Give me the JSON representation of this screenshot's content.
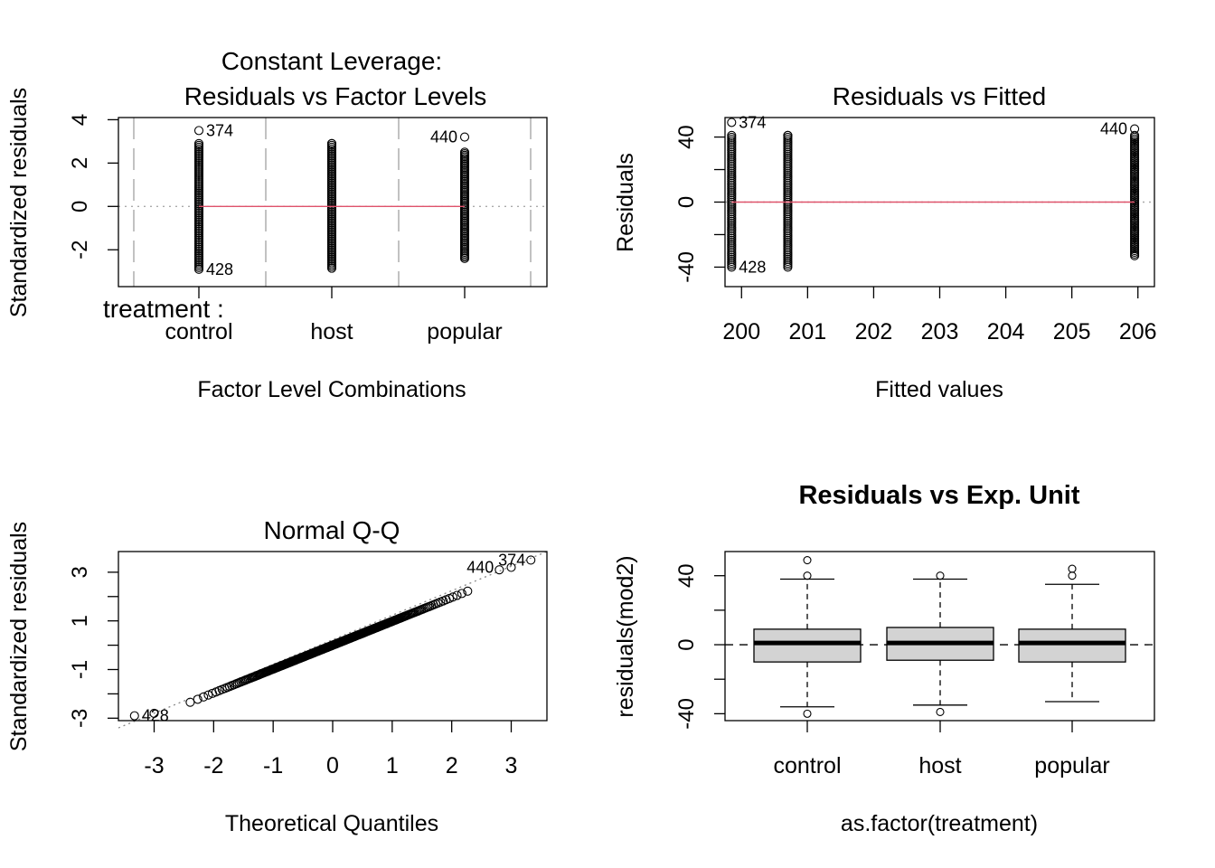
{
  "chart_data": [
    {
      "type": "scatter",
      "title": "Constant Leverage:\nResiduals vs Factor Levels",
      "xlabel": "Factor Level Combinations",
      "ylabel": "Standardized residuals",
      "factor_label": "treatment :",
      "categories": [
        "control",
        "host",
        "popular"
      ],
      "ylim": [
        -3.7,
        4.1
      ],
      "yticks": [
        -2,
        0,
        2,
        4
      ],
      "ytick_labels": [
        "-2",
        "0",
        "2",
        "4"
      ],
      "groups": [
        {
          "name": "control",
          "min": -2.9,
          "max": 3.5,
          "upper_cluster": 2.9
        },
        {
          "name": "host",
          "min": -2.85,
          "max": 2.9,
          "upper_cluster": 2.9
        },
        {
          "name": "popular",
          "min": -2.4,
          "max": 3.2,
          "upper_cluster": 2.5
        }
      ],
      "annotations": [
        {
          "label": "374",
          "category": "control",
          "y": 3.5,
          "side": "right"
        },
        {
          "label": "428",
          "category": "control",
          "y": -2.9,
          "side": "right"
        },
        {
          "label": "440",
          "category": "popular",
          "y": 3.2,
          "side": "left"
        }
      ],
      "reference_line": 0
    },
    {
      "type": "scatter",
      "title": "Residuals vs Fitted",
      "xlabel": "Fitted values",
      "ylabel": "Residuals",
      "xlim": [
        199.75,
        206.25
      ],
      "ylim": [
        -52,
        52
      ],
      "xticks": [
        200,
        201,
        202,
        203,
        204,
        205,
        206
      ],
      "xtick_labels": [
        "200",
        "201",
        "202",
        "203",
        "204",
        "205",
        "206"
      ],
      "yticks": [
        -40,
        0,
        40
      ],
      "ytick_labels": [
        "-40",
        "0",
        "40"
      ],
      "groups": [
        {
          "x": 199.85,
          "min": -40,
          "max": 49
        },
        {
          "x": 200.7,
          "min": -40,
          "max": 41
        },
        {
          "x": 205.95,
          "min": -33,
          "max": 45
        }
      ],
      "annotations": [
        {
          "label": "374",
          "x": 199.85,
          "y": 49,
          "side": "right"
        },
        {
          "label": "428",
          "x": 199.85,
          "y": -40,
          "side": "right"
        },
        {
          "label": "440",
          "x": 205.95,
          "y": 45,
          "side": "left"
        }
      ],
      "reference_line": 0
    },
    {
      "type": "scatter",
      "title": "Normal Q-Q",
      "xlabel": "Theoretical Quantiles",
      "ylabel": "Standardized residuals",
      "xlim": [
        -3.6,
        3.6
      ],
      "ylim": [
        -3.1,
        3.85
      ],
      "xticks": [
        -3,
        -2,
        -1,
        0,
        1,
        2,
        3
      ],
      "xtick_labels": [
        "-3",
        "-2",
        "-1",
        "0",
        "1",
        "2",
        "3"
      ],
      "yticks": [
        -3,
        -1,
        1,
        3
      ],
      "ytick_labels": [
        "-3",
        "-1",
        "1",
        "3"
      ],
      "annotations": [
        {
          "label": "374",
          "x": 3.33,
          "y": 3.5,
          "side": "left"
        },
        {
          "label": "440",
          "x": 2.8,
          "y": 3.2,
          "side": "left"
        },
        {
          "label": "428",
          "x": -3.33,
          "y": -2.9,
          "side": "right"
        }
      ]
    },
    {
      "type": "box",
      "title": "Residuals vs Exp. Unit",
      "xlabel": "as.factor(treatment)",
      "ylabel": "residuals(mod2)",
      "ylim": [
        -44,
        54
      ],
      "yticks": [
        -40,
        0,
        40
      ],
      "ytick_labels": [
        "-40",
        "0",
        "40"
      ],
      "categories": [
        "control",
        "host",
        "popular"
      ],
      "boxes": [
        {
          "name": "control",
          "whisker_low": -36,
          "q1": -10,
          "median": 1,
          "q3": 9,
          "whisker_high": 38,
          "outliers": [
            -40,
            40,
            49
          ]
        },
        {
          "name": "host",
          "whisker_low": -35,
          "q1": -9,
          "median": 1,
          "q3": 10,
          "whisker_high": 38,
          "outliers": [
            -39,
            40
          ]
        },
        {
          "name": "popular",
          "whisker_low": -33,
          "q1": -10,
          "median": 1,
          "q3": 9,
          "whisker_high": 35,
          "outliers": [
            40,
            44
          ]
        }
      ],
      "reference_line": 0
    }
  ]
}
